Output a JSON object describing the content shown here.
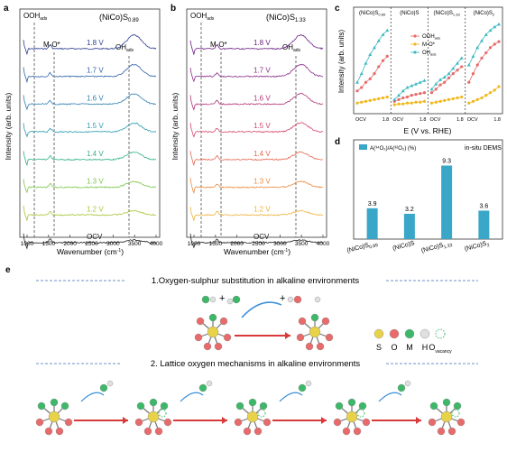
{
  "panels": {
    "a": {
      "letter": "a",
      "title": "(NiCo)S",
      "title_sub": "0.89",
      "ann_oohads": "OOH",
      "ann_mo": "M-O*",
      "ann_ohads": "OH",
      "ads": "ads",
      "xlabel": "Wavenumber (cm",
      "xlabel_tail": ")",
      "ylabel": "Intensity (arb. units)",
      "xticks": [
        "1000",
        "1500",
        "2000",
        "2500",
        "3000",
        "3500",
        "4000"
      ],
      "traces": [
        "1.8 V",
        "1.7 V",
        "1.6 V",
        "1.5 V",
        "1.4 V",
        "1.3 V",
        "1.2 V",
        "OCV"
      ],
      "trace_colors": [
        "#2a3d8f",
        "#2f62a8",
        "#2f7fb3",
        "#2a9bb0",
        "#2fb07f",
        "#7cc64a",
        "#a8c63a",
        "#222222"
      ]
    },
    "b": {
      "letter": "b",
      "title": "(NiCo)S",
      "title_sub": "1.33",
      "ann_oohads": "OOH",
      "ann_mo": "M-O*",
      "ann_ohads": "OH",
      "ads": "ads",
      "xlabel": "Wavenumber (cm",
      "xlabel_tail": ")",
      "ylabel": "Intensity (arb. units)",
      "xticks": [
        "1000",
        "1500",
        "2000",
        "2500",
        "3000",
        "3500",
        "4000"
      ],
      "traces": [
        "1.8 V",
        "1.7 V",
        "1.6 V",
        "1.5 V",
        "1.4 V",
        "1.3 V",
        "1.2 V",
        "OCV"
      ],
      "trace_colors": [
        "#6a1e84",
        "#8a2a8c",
        "#b0357a",
        "#d2456a",
        "#e4664e",
        "#eb8a40",
        "#edb23c",
        "#222222"
      ]
    },
    "c": {
      "letter": "c",
      "groups": [
        "(NiCo)S",
        "(NiCo)S",
        "(NiCo)S",
        "(NiCo)S"
      ],
      "group_subs": [
        "0.89",
        "",
        "1.33",
        "2"
      ],
      "legend": [
        "OOH",
        "M-O*",
        "OH"
      ],
      "legend_subs": [
        "ads",
        "",
        "ads"
      ],
      "xtick_left": "OCV",
      "xtick_right": "1.8",
      "xlabel": "E (V vs. RHE)",
      "ylabel": "Intensity (arb. units)",
      "colors": [
        "#e86a6a",
        "#f0b81e",
        "#3cb8c0"
      ]
    },
    "d": {
      "letter": "d",
      "legend": "A(³⁴O₂)/A(³²O₂) (%)",
      "note": "in-situ DEMS",
      "bar_color": "#3aa7c8"
    },
    "e": {
      "letter": "e",
      "heading1": "1.Oxygen-sulphur substitution in alkaline environments",
      "heading2": "2. Lattice oxygen mechanisms in alkaline environments",
      "plus": "+",
      "legend_letters": [
        "S",
        "O",
        "M",
        "H",
        "O"
      ],
      "legend_vacancy": "vacancy",
      "colors": {
        "S": "#e8d24a",
        "O": "#e86a6a",
        "M": "#3cb868",
        "H": "#e0e0e0"
      }
    }
  },
  "chart_data": [
    {
      "type": "bar",
      "categories": [
        "(NiCo)S0.89",
        "(NiCo)S",
        "(NiCo)S1.33",
        "(NiCo)S2"
      ],
      "values": [
        3.9,
        3.2,
        9.3,
        3.6
      ],
      "value_labels": [
        "3.9",
        "3.2",
        "9.3",
        "3.6"
      ],
      "ylim": [
        0,
        10.5
      ]
    },
    {
      "type": "line",
      "groups": [
        "(NiCo)S0.89",
        "(NiCo)S",
        "(NiCo)S1.33",
        "(NiCo)S2"
      ],
      "series": [
        {
          "name": "OOHads",
          "values": [
            [
              0.2,
              0.24,
              0.3,
              0.34,
              0.4,
              0.48,
              0.55,
              0.6
            ],
            [
              0.08,
              0.1,
              0.12,
              0.13,
              0.15,
              0.16,
              0.17,
              0.18
            ],
            [
              0.18,
              0.22,
              0.27,
              0.3,
              0.35,
              0.4,
              0.44,
              0.48
            ],
            [
              0.3,
              0.4,
              0.5,
              0.58,
              0.64,
              0.7,
              0.74,
              0.77
            ]
          ]
        },
        {
          "name": "M-O*",
          "values": [
            [
              0.06,
              0.07,
              0.08,
              0.09,
              0.1,
              0.11,
              0.12,
              0.13
            ],
            [
              0.04,
              0.05,
              0.05,
              0.06,
              0.06,
              0.07,
              0.07,
              0.08
            ],
            [
              0.06,
              0.07,
              0.08,
              0.09,
              0.1,
              0.11,
              0.12,
              0.13
            ],
            [
              0.06,
              0.08,
              0.1,
              0.12,
              0.15,
              0.18,
              0.21,
              0.25
            ]
          ]
        },
        {
          "name": "OHads",
          "values": [
            [
              0.3,
              0.4,
              0.52,
              0.62,
              0.7,
              0.78,
              0.85,
              0.9
            ],
            [
              0.1,
              0.15,
              0.2,
              0.24,
              0.26,
              0.28,
              0.3,
              0.32
            ],
            [
              0.22,
              0.28,
              0.33,
              0.36,
              0.4,
              0.46,
              0.52,
              0.58
            ],
            [
              0.5,
              0.6,
              0.7,
              0.78,
              0.85,
              0.9,
              0.94,
              0.97
            ]
          ]
        }
      ]
    }
  ]
}
